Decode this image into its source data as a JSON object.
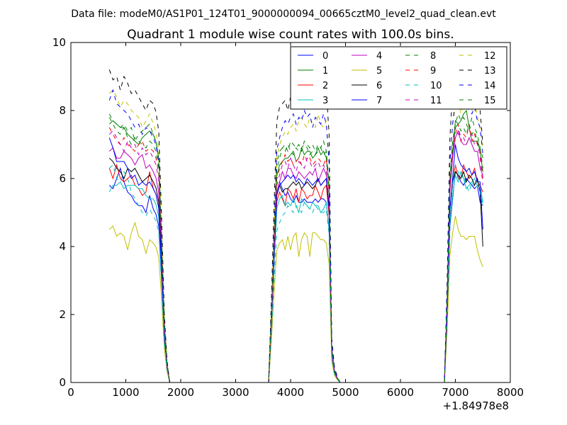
{
  "chart_data": {
    "type": "line",
    "suptitle": "Data file: modeM0/AS1P01_124T01_9000000094_00665cztM0_level2_quad_clean.evt",
    "title": "Quadrant 1 module wise count rates with 100.0s bins.",
    "xlabel": "",
    "ylabel": "",
    "x_offset_label": "+1.84978e8",
    "xlim": [
      0,
      8000
    ],
    "ylim": [
      0,
      10
    ],
    "xticks": [
      0,
      1000,
      2000,
      3000,
      4000,
      5000,
      6000,
      7000,
      8000
    ],
    "yticks": [
      0,
      2,
      4,
      6,
      8,
      10
    ],
    "legend_position": "top-right",
    "legend_columns": 4,
    "segments": [
      {
        "start": 700,
        "on_end": 1500,
        "ramp_points": [
          1550,
          1600,
          1650,
          1700,
          1750,
          1800
        ],
        "ramp_fracs": [
          0.97,
          0.9,
          0.6,
          0.25,
          0.08,
          0
        ]
      },
      {
        "zero_from": 1800,
        "zero_to": 3600
      },
      {
        "ramp_up_points": [
          3600,
          3650,
          3700,
          3750
        ],
        "ramp_up_fracs": [
          0,
          0.3,
          0.65,
          0.95
        ],
        "start": 3800,
        "on_end": 4650,
        "ramp_points": [
          4700,
          4750,
          4800,
          4850,
          4900
        ],
        "ramp_fracs": [
          0.85,
          0.15,
          0.05,
          0.02,
          0
        ]
      },
      {
        "zero_from": 4900,
        "zero_to": 6800
      },
      {
        "ramp_up_points": [
          6800,
          6850,
          6900
        ],
        "ramp_up_fracs": [
          0,
          0.35,
          0.85
        ],
        "start": 6950,
        "on_end": 7500
      }
    ],
    "series": [
      {
        "name": "0",
        "color": "#0000ff",
        "style": "solid",
        "on1": [
          5.8,
          5.7,
          6.0,
          6.3,
          5.9,
          5.6,
          5.5,
          5.3,
          5.2,
          5.2,
          5.0,
          5.5,
          5.1
        ],
        "on2": [
          5.9,
          5.7,
          5.5,
          5.6,
          5.4,
          5.3,
          5.5,
          5.3,
          5.3,
          5.4,
          5.3,
          5.3,
          5.3,
          5.4,
          5.3,
          5.4,
          5.4,
          5.3
        ],
        "on3": [
          5.4,
          6.2,
          6.1,
          5.9,
          5.8,
          6.0,
          5.9,
          5.8,
          5.7,
          5.8,
          5.3,
          5.2
        ]
      },
      {
        "name": "1",
        "color": "#008000",
        "style": "solid",
        "on1": [
          7.6,
          7.7,
          7.6,
          7.5,
          7.5,
          7.3,
          7.2,
          7.1,
          7.0,
          7.2,
          7.3,
          7.4,
          7.3
        ],
        "on2": [
          6.4,
          6.5,
          6.6,
          6.6,
          6.7,
          6.8,
          6.5,
          6.6,
          6.9,
          6.7,
          6.8,
          6.8,
          6.6,
          6.7,
          6.9,
          6.7,
          6.8,
          6.6
        ],
        "on3": [
          6.8,
          7.7,
          7.6,
          7.7,
          7.9,
          8.0,
          7.5,
          7.1,
          7.1,
          7.1,
          6.8,
          6.2
        ]
      },
      {
        "name": "2",
        "color": "#ff0000",
        "style": "solid",
        "on1": [
          6.3,
          6.0,
          6.4,
          6.0,
          5.9,
          6.0,
          6.1,
          5.8,
          5.7,
          5.5,
          5.6,
          6.2,
          5.7
        ],
        "on2": [
          5.6,
          5.4,
          5.2,
          5.7,
          5.6,
          5.4,
          5.7,
          5.3,
          5.7,
          5.6,
          5.4,
          5.5,
          5.5,
          5.8,
          5.6,
          5.4,
          5.7,
          5.8
        ],
        "on3": [
          5.9,
          6.4,
          6.0,
          6.0,
          6.4,
          6.2,
          6.0,
          6.1,
          6.3,
          5.9,
          5.8,
          5.6
        ]
      },
      {
        "name": "3",
        "color": "#00bfbf",
        "style": "solid",
        "on1": [
          5.6,
          5.8,
          5.8,
          5.9,
          5.7,
          5.8,
          5.8,
          5.8,
          5.7,
          5.7,
          5.5,
          5.4,
          5.4
        ],
        "on2": [
          5.4,
          5.5,
          5.2,
          5.3,
          5.2,
          5.4,
          5.2,
          5.0,
          5.4,
          5.3,
          5.2,
          5.1,
          5.3,
          5.2,
          5.2,
          5.0,
          5.1,
          5.3
        ],
        "on3": [
          5.5,
          6.1,
          5.9,
          6.2,
          6.0,
          5.7,
          5.8,
          5.9,
          6.0,
          5.8,
          5.8,
          5.3
        ]
      },
      {
        "name": "4",
        "color": "#bf00bf",
        "style": "solid",
        "on1": [
          6.8,
          6.9,
          6.6,
          6.6,
          6.8,
          6.7,
          6.6,
          6.4,
          6.6,
          6.7,
          6.3,
          6.4,
          6.2
        ],
        "on2": [
          5.9,
          6.2,
          6.0,
          6.3,
          6.3,
          6.1,
          6.0,
          6.2,
          6.1,
          6.0,
          6.1,
          6.2,
          6.1,
          6.3,
          5.9,
          6.1,
          6.3,
          6.1
        ],
        "on3": [
          6.6,
          7.2,
          7.4,
          7.1,
          7.0,
          7.0,
          7.2,
          7.0,
          6.8,
          6.8,
          6.3,
          6.1
        ]
      },
      {
        "name": "5",
        "color": "#bfbf00",
        "style": "solid",
        "on1": [
          4.5,
          4.6,
          4.3,
          4.4,
          4.3,
          3.9,
          4.4,
          4.7,
          4.3,
          4.2,
          3.8,
          4.2,
          4.1
        ],
        "on2": [
          4.1,
          4.2,
          3.9,
          4.3,
          3.9,
          4.3,
          4.4,
          3.7,
          4.2,
          4.4,
          4.3,
          3.7,
          4.4,
          4.4,
          4.3,
          4.2,
          4.2,
          4.1
        ],
        "on3": [
          4.4,
          4.9,
          4.5,
          4.3,
          4.3,
          4.2,
          4.3,
          4.3,
          4.3,
          3.9,
          3.6,
          3.4
        ]
      },
      {
        "name": "6",
        "color": "#000000",
        "style": "solid",
        "on1": [
          6.6,
          6.5,
          6.3,
          6.2,
          6.0,
          6.3,
          6.2,
          6.3,
          6.1,
          5.9,
          6.0,
          6.1,
          5.9
        ],
        "on2": [
          5.8,
          5.6,
          5.7,
          5.7,
          5.8,
          5.9,
          5.8,
          5.9,
          5.7,
          5.8,
          5.9,
          5.8,
          5.7,
          5.8,
          6.0,
          5.8,
          5.9,
          6.0
        ],
        "on3": [
          5.9,
          6.2,
          6.1,
          6.0,
          6.2,
          5.9,
          6.1,
          6.0,
          5.8,
          6.0,
          5.6,
          4.0
        ]
      },
      {
        "name": "7",
        "color": "#0000ff",
        "style": "solid",
        "on1": [
          7.2,
          6.9,
          6.5,
          6.5,
          6.5,
          6.3,
          6.0,
          6.1,
          5.8,
          5.9,
          5.8,
          5.9,
          5.7
        ],
        "on2": [
          5.8,
          5.9,
          6.0,
          6.1,
          6.0,
          6.1,
          5.9,
          6.0,
          5.9,
          5.8,
          6.0,
          5.9,
          5.8,
          5.9,
          6.0,
          5.8,
          5.9,
          6.0
        ],
        "on3": [
          6.0,
          7.0,
          6.6,
          6.4,
          6.3,
          6.2,
          6.3,
          6.1,
          6.2,
          5.9,
          5.9,
          4.5
        ]
      },
      {
        "name": "8",
        "color": "#008000",
        "style": "dashed",
        "on1": [
          7.9,
          7.7,
          7.6,
          7.5,
          7.6,
          7.4,
          7.5,
          7.1,
          7.3,
          7.4,
          7.5,
          7.6,
          7.3
        ],
        "on2": [
          6.8,
          6.9,
          6.8,
          7.0,
          6.8,
          6.7,
          6.9,
          6.8,
          6.9,
          7.0,
          6.9,
          6.7,
          6.8,
          6.7,
          6.8,
          6.9,
          6.7,
          6.8
        ],
        "on3": [
          7.1,
          7.6,
          7.9,
          7.7,
          7.8,
          7.6,
          7.4,
          7.8,
          7.5,
          7.3,
          6.9,
          6.6
        ]
      },
      {
        "name": "9",
        "color": "#ff0000",
        "style": "dashed",
        "on1": [
          7.5,
          7.3,
          7.1,
          7.0,
          7.2,
          7.0,
          6.9,
          6.8,
          7.0,
          7.1,
          6.8,
          6.9,
          6.8
        ],
        "on2": [
          6.3,
          6.5,
          6.7,
          6.5,
          6.6,
          6.4,
          6.5,
          6.6,
          6.4,
          6.7,
          6.5,
          6.6,
          6.4,
          6.5,
          6.6,
          6.5,
          6.4,
          6.6
        ],
        "on3": [
          6.8,
          7.3,
          7.6,
          7.1,
          7.3,
          7.2,
          7.6,
          7.1,
          7.3,
          7.0,
          6.8,
          6.0
        ]
      },
      {
        "name": "10",
        "color": "#00bfbf",
        "style": "dashed",
        "on1": [
          6.3,
          6.4,
          6.0,
          5.9,
          6.2,
          6.0,
          5.6,
          5.4,
          5.2,
          5.0,
          4.9,
          5.1,
          4.9
        ],
        "on2": [
          4.7,
          4.9,
          5.0,
          5.2,
          5.1,
          5.0,
          5.2,
          5.1,
          5.0,
          5.3,
          5.2,
          5.1,
          5.0,
          5.2,
          5.1,
          5.0,
          5.0,
          5.1
        ],
        "on3": [
          5.8,
          6.4,
          6.2,
          6.0,
          6.1,
          5.8,
          5.6,
          5.9,
          5.7,
          5.8,
          5.6,
          5.2
        ]
      },
      {
        "name": "11",
        "color": "#bf00bf",
        "style": "dashed",
        "on1": [
          7.3,
          7.4,
          7.2,
          7.0,
          6.8,
          7.1,
          6.9,
          7.0,
          6.7,
          6.9,
          6.7,
          6.8,
          6.6
        ],
        "on2": [
          6.1,
          6.4,
          6.5,
          6.3,
          6.6,
          6.4,
          6.2,
          6.5,
          6.4,
          6.3,
          6.6,
          6.5,
          6.3,
          6.4,
          6.5,
          6.3,
          6.4,
          6.2
        ],
        "on3": [
          6.7,
          7.5,
          7.3,
          7.3,
          7.2,
          7.0,
          7.2,
          7.3,
          7.0,
          7.1,
          6.6,
          5.8
        ]
      },
      {
        "name": "12",
        "color": "#bfbf00",
        "style": "dashed",
        "on1": [
          8.5,
          8.6,
          8.4,
          8.1,
          8.3,
          8.2,
          8.0,
          7.9,
          7.8,
          7.5,
          7.7,
          7.9,
          7.6
        ],
        "on2": [
          7.0,
          7.2,
          7.4,
          7.3,
          7.5,
          7.6,
          7.4,
          7.7,
          7.8,
          7.6,
          7.5,
          7.8,
          7.6,
          7.5,
          7.9,
          7.6,
          7.5,
          7.7
        ],
        "on3": [
          7.6,
          8.1,
          8.3,
          7.9,
          8.2,
          8.6,
          8.1,
          8.0,
          8.4,
          7.8,
          7.5,
          6.9
        ]
      },
      {
        "name": "13",
        "color": "#000000",
        "style": "dashed",
        "on1": [
          9.2,
          8.9,
          9.0,
          8.6,
          9.0,
          8.8,
          8.5,
          8.6,
          8.4,
          8.2,
          8.0,
          8.3,
          8.2
        ],
        "on2": [
          8.1,
          8.2,
          8.3,
          8.0,
          8.4,
          8.5,
          8.2,
          8.6,
          8.8,
          8.9,
          8.5,
          8.6,
          8.4,
          8.8,
          8.7,
          8.3,
          8.8,
          8.6
        ],
        "on3": [
          8.5,
          9.0,
          9.0,
          9.0,
          8.9,
          8.7,
          9.1,
          8.8,
          8.7,
          8.5,
          8.0,
          7.0
        ]
      },
      {
        "name": "14",
        "color": "#0000ff",
        "style": "dashed",
        "on1": [
          8.3,
          8.6,
          8.2,
          8.1,
          8.0,
          7.9,
          7.7,
          7.5,
          7.6,
          7.3,
          7.5,
          7.4,
          7.2
        ],
        "on2": [
          7.2,
          7.5,
          7.7,
          7.6,
          7.8,
          7.9,
          7.6,
          7.8,
          7.7,
          8.0,
          7.8,
          7.9,
          7.5,
          7.8,
          7.7,
          7.6,
          7.9,
          7.6
        ],
        "on3": [
          7.6,
          8.3,
          8.1,
          8.2,
          8.5,
          8.2,
          8.0,
          7.9,
          8.1,
          7.7,
          7.5,
          6.7
        ]
      },
      {
        "name": "15",
        "color": "#008000",
        "style": "dashed",
        "on1": [
          7.8,
          7.6,
          7.4,
          7.3,
          7.5,
          7.2,
          7.0,
          7.2,
          7.1,
          7.0,
          6.9,
          7.1,
          7.0
        ],
        "on2": [
          6.6,
          6.9,
          7.0,
          6.8,
          7.1,
          7.0,
          6.9,
          7.0,
          6.8,
          7.1,
          7.0,
          6.9,
          7.0,
          6.8,
          7.0,
          6.9,
          7.1,
          6.8
        ],
        "on3": [
          6.9,
          7.5,
          7.6,
          7.4,
          7.5,
          7.3,
          7.6,
          7.3,
          7.4,
          7.1,
          6.9,
          6.3
        ]
      }
    ]
  }
}
